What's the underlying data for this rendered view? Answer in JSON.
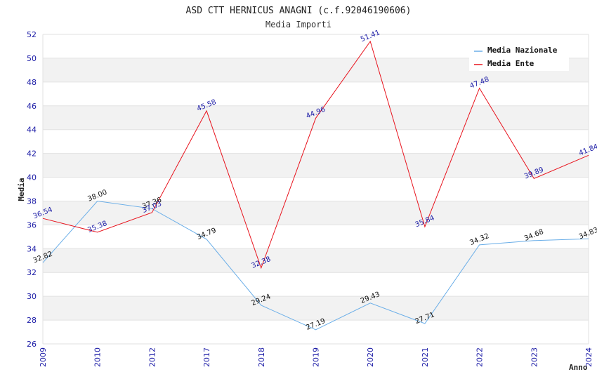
{
  "chart_data": {
    "type": "line",
    "title": "ASD CTT HERNICUS ANAGNI (c.f.92046190606)",
    "subtitle": "Media Importi",
    "xlabel": "Anno",
    "ylabel": "Media",
    "categories": [
      "2009",
      "2010",
      "2012",
      "2017",
      "2018",
      "2019",
      "2020",
      "2021",
      "2022",
      "2023",
      "2024"
    ],
    "ylim": [
      26,
      52
    ],
    "yticks": [
      "26",
      "28",
      "30",
      "32",
      "34",
      "36",
      "38",
      "40",
      "42",
      "44",
      "46",
      "48",
      "50",
      "52"
    ],
    "grid": "horizontal alternating bands",
    "legend_position": "top-right",
    "series": [
      {
        "name": "Media Nazionale",
        "color": "#6aaee8",
        "label_color": "#111111",
        "values": [
          32.82,
          38.0,
          37.36,
          34.79,
          29.24,
          27.19,
          29.43,
          27.71,
          34.32,
          34.68,
          34.83
        ],
        "labels": [
          "32.82",
          "38.00",
          "37.36",
          "34.79",
          "29.24",
          "27.19",
          "29.43",
          "27.71",
          "34.32",
          "34.68",
          "34.83"
        ]
      },
      {
        "name": "Media Ente",
        "color": "#e8141e",
        "label_color": "#1a1aa6",
        "values": [
          36.54,
          35.38,
          37.03,
          45.58,
          32.38,
          44.96,
          51.41,
          35.84,
          47.48,
          39.89,
          41.84
        ],
        "labels": [
          "36.54",
          "35.38",
          "37.03",
          "45.58",
          "32.38",
          "44.96",
          "51.41",
          "35.84",
          "47.48",
          "39.89",
          "41.84"
        ]
      }
    ]
  }
}
